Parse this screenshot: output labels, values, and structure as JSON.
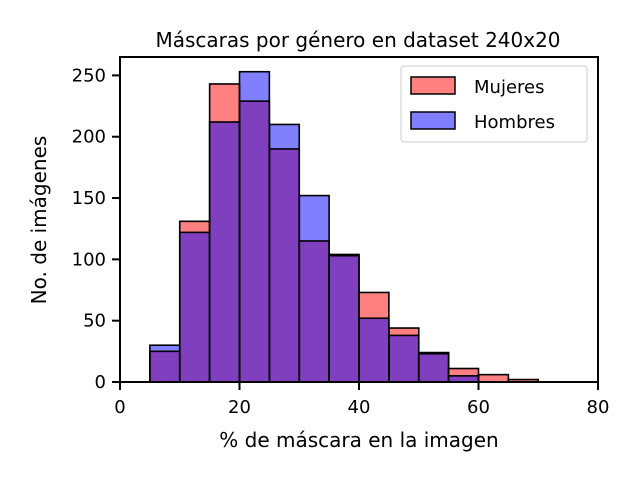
{
  "chart_data": {
    "type": "bar",
    "title": "Máscaras por género en dataset 240x20",
    "xlabel": "% de máscara en la imagen",
    "ylabel": "No. de imágenes",
    "xlim": [
      0,
      80
    ],
    "ylim": [
      0,
      265
    ],
    "xticks": [
      0,
      20,
      40,
      60,
      80
    ],
    "yticks": [
      0,
      50,
      100,
      150,
      200,
      250
    ],
    "grid": false,
    "legend_position": "top-right",
    "bins": [
      [
        5,
        10
      ],
      [
        10,
        15
      ],
      [
        15,
        20
      ],
      [
        20,
        25
      ],
      [
        25,
        30
      ],
      [
        30,
        35
      ],
      [
        35,
        40
      ],
      [
        40,
        45
      ],
      [
        45,
        50
      ],
      [
        50,
        55
      ],
      [
        55,
        60
      ],
      [
        60,
        65
      ],
      [
        65,
        70
      ],
      [
        70,
        75
      ],
      [
        75,
        80
      ]
    ],
    "series": [
      {
        "name": "Mujeres",
        "color": "#ff8080",
        "values": [
          25,
          131,
          243,
          229,
          190,
          115,
          104,
          73,
          44,
          24,
          11,
          6,
          2,
          0,
          0
        ]
      },
      {
        "name": "Hombres",
        "color": "#8080ff",
        "values": [
          30,
          122,
          212,
          253,
          210,
          152,
          103,
          52,
          38,
          23,
          5,
          0,
          0,
          0,
          0
        ]
      }
    ],
    "overlap_color": "#7f3fbf"
  }
}
